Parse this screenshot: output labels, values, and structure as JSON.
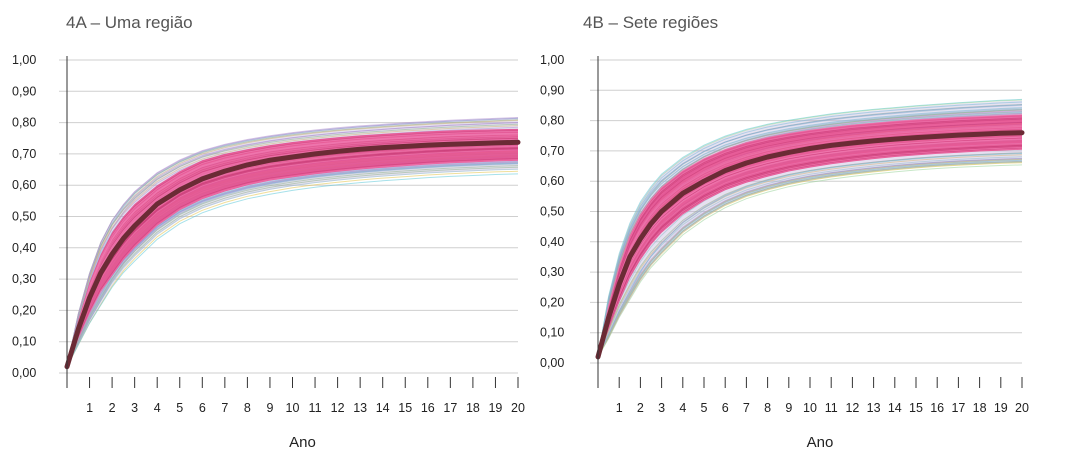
{
  "chart_data": [
    {
      "type": "line",
      "title": "4A – Uma região",
      "xlabel": "Ano",
      "ylabel": "",
      "xlim": [
        0,
        20
      ],
      "ylim": [
        0,
        1
      ],
      "x_ticks": [
        "1",
        "2",
        "3",
        "4",
        "5",
        "6",
        "7",
        "8",
        "9",
        "10",
        "11",
        "12",
        "13",
        "14",
        "15",
        "16",
        "17",
        "18",
        "19",
        "20"
      ],
      "y_ticks": [
        "1,00",
        "0,90",
        "0,80",
        "0,70",
        "0,60",
        "0,50",
        "0,40",
        "0,30",
        "0,20",
        "0,10",
        "0,00"
      ],
      "grid": true,
      "colors": {
        "median": "#6b2b35",
        "band": "#e8508f",
        "band_light": "#f07ab0",
        "simulations": [
          "#5ec8d8",
          "#7fbf6a",
          "#b08fd0",
          "#e3c24a",
          "#6aa0e0",
          "#9bd39b",
          "#d98fd0",
          "#89c9c9"
        ]
      },
      "series": [
        {
          "x": [
            0,
            0.5,
            1,
            1.5,
            2,
            2.5,
            3,
            4,
            5,
            6,
            7,
            8,
            9,
            10,
            11,
            12,
            13,
            14,
            15,
            16,
            17,
            18,
            19,
            20
          ],
          "values": [
            0.02,
            0.14,
            0.24,
            0.32,
            0.38,
            0.43,
            0.47,
            0.54,
            0.585,
            0.62,
            0.645,
            0.665,
            0.68,
            0.69,
            0.7,
            0.708,
            0.715,
            0.72,
            0.724,
            0.728,
            0.731,
            0.733,
            0.735,
            0.737
          ]
        }
      ],
      "band_upper": [
        0.02,
        0.17,
        0.29,
        0.38,
        0.45,
        0.5,
        0.54,
        0.6,
        0.645,
        0.68,
        0.7,
        0.715,
        0.728,
        0.738,
        0.746,
        0.753,
        0.759,
        0.764,
        0.768,
        0.772,
        0.775,
        0.777,
        0.779,
        0.78
      ],
      "band_lower": [
        0.02,
        0.11,
        0.19,
        0.26,
        0.31,
        0.36,
        0.4,
        0.47,
        0.52,
        0.555,
        0.58,
        0.6,
        0.615,
        0.625,
        0.635,
        0.643,
        0.65,
        0.656,
        0.661,
        0.666,
        0.67,
        0.673,
        0.676,
        0.678
      ],
      "spread_upper": [
        0.02,
        0.19,
        0.32,
        0.42,
        0.49,
        0.54,
        0.58,
        0.64,
        0.68,
        0.71,
        0.73,
        0.745,
        0.757,
        0.767,
        0.775,
        0.782,
        0.788,
        0.793,
        0.798,
        0.802,
        0.806,
        0.809,
        0.812,
        0.815
      ],
      "spread_lower": [
        0.02,
        0.09,
        0.16,
        0.22,
        0.28,
        0.33,
        0.37,
        0.44,
        0.49,
        0.525,
        0.55,
        0.57,
        0.585,
        0.597,
        0.607,
        0.615,
        0.622,
        0.628,
        0.633,
        0.638,
        0.642,
        0.645,
        0.648,
        0.65
      ]
    },
    {
      "type": "line",
      "title": "4B – Sete regiões",
      "xlabel": "Ano",
      "ylabel": "",
      "xlim": [
        0,
        20
      ],
      "ylim": [
        0,
        1
      ],
      "x_ticks": [
        "1",
        "2",
        "3",
        "4",
        "5",
        "6",
        "7",
        "8",
        "9",
        "10",
        "11",
        "12",
        "13",
        "14",
        "15",
        "16",
        "17",
        "18",
        "19",
        "20"
      ],
      "y_ticks": [
        "1,00",
        "0,90",
        "0,80",
        "0,70",
        "0,60",
        "0,50",
        "0,40",
        "0,30",
        "0,20",
        "0,10",
        "0,00"
      ],
      "grid": true,
      "colors": {
        "median": "#6b2b35",
        "band": "#e8508f",
        "band_light": "#f07ab0",
        "simulations": [
          "#5ec8d8",
          "#7fbf6a",
          "#b08fd0",
          "#e3c24a",
          "#6aa0e0",
          "#9bd39b",
          "#d98fd0",
          "#89c9c9"
        ]
      },
      "series": [
        {
          "x": [
            0,
            0.5,
            1,
            1.5,
            2,
            2.5,
            3,
            4,
            5,
            6,
            7,
            8,
            9,
            10,
            11,
            12,
            13,
            14,
            15,
            16,
            17,
            18,
            19,
            20
          ],
          "values": [
            0.02,
            0.15,
            0.26,
            0.35,
            0.41,
            0.46,
            0.5,
            0.56,
            0.6,
            0.635,
            0.66,
            0.68,
            0.695,
            0.708,
            0.718,
            0.726,
            0.733,
            0.739,
            0.744,
            0.748,
            0.752,
            0.755,
            0.758,
            0.76
          ]
        }
      ],
      "band_upper": [
        0.02,
        0.19,
        0.32,
        0.42,
        0.49,
        0.54,
        0.58,
        0.635,
        0.675,
        0.705,
        0.728,
        0.745,
        0.758,
        0.769,
        0.778,
        0.786,
        0.792,
        0.798,
        0.803,
        0.807,
        0.811,
        0.814,
        0.817,
        0.82
      ],
      "band_lower": [
        0.02,
        0.11,
        0.2,
        0.28,
        0.34,
        0.39,
        0.43,
        0.49,
        0.535,
        0.57,
        0.595,
        0.615,
        0.632,
        0.645,
        0.656,
        0.665,
        0.673,
        0.68,
        0.685,
        0.69,
        0.694,
        0.698,
        0.701,
        0.704
      ],
      "spread_upper": [
        0.02,
        0.22,
        0.36,
        0.46,
        0.53,
        0.58,
        0.62,
        0.675,
        0.715,
        0.745,
        0.767,
        0.784,
        0.797,
        0.808,
        0.818,
        0.826,
        0.833,
        0.839,
        0.845,
        0.85,
        0.855,
        0.859,
        0.863,
        0.866
      ],
      "spread_lower": [
        0.02,
        0.08,
        0.15,
        0.21,
        0.27,
        0.32,
        0.36,
        0.43,
        0.48,
        0.52,
        0.55,
        0.572,
        0.59,
        0.604,
        0.615,
        0.624,
        0.632,
        0.639,
        0.645,
        0.65,
        0.654,
        0.657,
        0.66,
        0.662
      ]
    }
  ]
}
